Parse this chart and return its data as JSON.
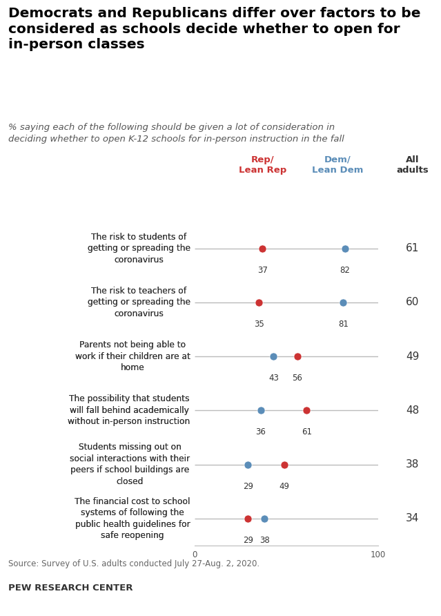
{
  "title_line1": "Democrats and Republicans differ over factors to be",
  "title_line2": "considered as schools decide whether to open for",
  "title_line3": "in-person classes",
  "subtitle": "% saying each of the following should be given a lot of consideration in\ndeciding whether to open K-12 schools for in-person instruction in the fall",
  "categories": [
    "The risk to students of\ngetting or spreading the\ncoronavirus",
    "The risk to teachers of\ngetting or spreading the\ncoronavirus",
    "Parents not being able to\nwork if their children are at\nhome",
    "The possibility that students\nwill fall behind academically\nwithout in-person instruction",
    "Students missing out on\nsocial interactions with their\npeers if school buildings are\nclosed",
    "The financial cost to school\nsystems of following the\npublic health guidelines for\nsafe reopening"
  ],
  "bold_parts": [
    [
      "The risk to ",
      "students",
      " of\ngetting or spreading the\ncoronavirus"
    ],
    [
      "The risk to ",
      "teachers",
      " of\ngetting or spreading the\ncoronavirus"
    ],
    null,
    null,
    null,
    null
  ],
  "rep_values": [
    37,
    35,
    56,
    61,
    49,
    29
  ],
  "dem_values": [
    82,
    81,
    43,
    36,
    29,
    38
  ],
  "all_adults": [
    61,
    60,
    49,
    48,
    38,
    34
  ],
  "rep_color": "#CC3333",
  "dem_color": "#5B8DB8",
  "line_color": "#BBBBBB",
  "text_color": "#333333",
  "source": "Source: Survey of U.S. adults conducted July 27-Aug. 2, 2020.",
  "attribution": "PEW RESEARCH CENTER",
  "background_color": "#FFFFFF",
  "right_panel_color": "#EEEEE8"
}
